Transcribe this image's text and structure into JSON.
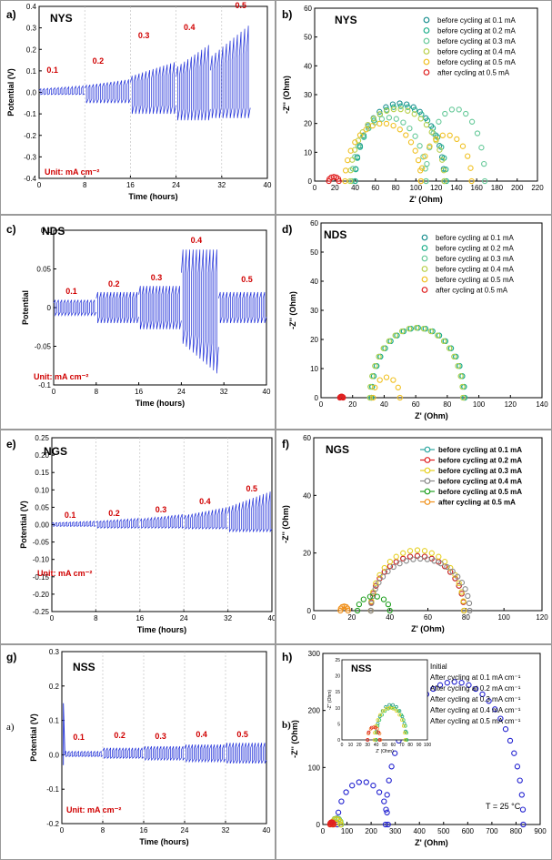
{
  "chart_data": [
    {
      "id": "a",
      "type": "line",
      "panel_label": "a)",
      "material": "NYS",
      "xlabel": "Time (hours)",
      "ylabel": "Potential (V)",
      "xlim": [
        0,
        40
      ],
      "ylim": [
        -0.4,
        0.4
      ],
      "xticks": [
        0,
        8,
        16,
        24,
        32,
        40
      ],
      "yticks": [
        -0.4,
        -0.3,
        -0.2,
        -0.1,
        0.0,
        0.1,
        0.2,
        0.3,
        0.4
      ],
      "unit_note": "Unit: mA cm⁻²",
      "grid": "vertical dashed at 8-hour intervals",
      "current_steps": [
        {
          "label": "0.1",
          "start": 0,
          "end": 8,
          "peak": 0.03,
          "trough": -0.01
        },
        {
          "label": "0.2",
          "start": 8,
          "end": 16,
          "peak": 0.06,
          "trough": -0.05
        },
        {
          "label": "0.3",
          "start": 16,
          "end": 24,
          "peak": 0.14,
          "trough": -0.1
        },
        {
          "label": "0.4",
          "start": 24,
          "end": 30,
          "peak": 0.22,
          "trough": -0.13
        },
        {
          "label": "0.5",
          "start": 30,
          "end": 37,
          "peak": 0.31,
          "trough": -0.12
        }
      ],
      "label_positions": [
        {
          "label": "0.1",
          "x": 2.5,
          "y": 0.1
        },
        {
          "label": "0.2",
          "x": 10.5,
          "y": 0.14
        },
        {
          "label": "0.3",
          "x": 18.5,
          "y": 0.26
        },
        {
          "label": "0.4",
          "x": 26.5,
          "y": 0.3
        },
        {
          "label": "0.5",
          "x": 35.5,
          "y": 0.4
        }
      ]
    },
    {
      "id": "b",
      "type": "scatter",
      "panel_label": "b)",
      "material": "NYS",
      "xlabel": "Z' (Ohm)",
      "ylabel": "-Z'' (Ohm)",
      "xlim": [
        0,
        220
      ],
      "ylim": [
        0,
        60
      ],
      "xticks": [
        0,
        20,
        40,
        60,
        80,
        100,
        120,
        140,
        160,
        180,
        200,
        220
      ],
      "yticks": [
        0,
        10,
        20,
        30,
        40,
        50,
        60
      ],
      "legend": "top-right",
      "series": [
        {
          "name": "before cycling at 0.1 mA",
          "color": "#1a8f8f",
          "arcs": [
            {
              "x1": 40,
              "x2": 128,
              "h": 27
            }
          ]
        },
        {
          "name": "before cycling at 0.2 mA",
          "color": "#20b08c",
          "arcs": [
            {
              "x1": 40,
              "x2": 130,
              "h": 26
            }
          ]
        },
        {
          "name": "before cycling at 0.3 mA",
          "color": "#66c999",
          "arcs": [
            {
              "x1": 37,
              "x2": 110,
              "h": 22
            },
            {
              "x1": 110,
              "x2": 168,
              "h": 25
            }
          ]
        },
        {
          "name": "before cycling at 0.4 mA",
          "color": "#b8d04a",
          "arcs": [
            {
              "x1": 35,
              "x2": 128,
              "h": 25
            }
          ]
        },
        {
          "name": "before cycling at 0.5 mA",
          "color": "#f0c020",
          "arcs": [
            {
              "x1": 30,
              "x2": 105,
              "h": 20
            },
            {
              "x1": 105,
              "x2": 155,
              "h": 16
            }
          ]
        },
        {
          "name": "after cycling at 0.5 mA",
          "color": "#e02020",
          "arcs": [
            {
              "x1": 14,
              "x2": 24,
              "h": 1.5
            }
          ]
        }
      ]
    },
    {
      "id": "c",
      "type": "line",
      "panel_label": "c)",
      "material": "NDS",
      "xlabel": "Time (hours)",
      "ylabel": "Potential",
      "xlim": [
        0,
        40
      ],
      "ylim": [
        -0.1,
        0.1
      ],
      "xticks": [
        0,
        8,
        16,
        24,
        32,
        40
      ],
      "yticks": [
        -0.1,
        -0.05,
        0,
        0.05,
        0.1
      ],
      "unit_note": "Unit: mA cm⁻²",
      "current_steps": [
        {
          "label": "0.1",
          "start": 0,
          "end": 8,
          "peak": 0.01,
          "trough": -0.01
        },
        {
          "label": "0.2",
          "start": 8,
          "end": 16,
          "peak": 0.02,
          "trough": -0.02
        },
        {
          "label": "0.3",
          "start": 16,
          "end": 24,
          "peak": 0.028,
          "trough": -0.028
        },
        {
          "label": "0.4",
          "start": 24,
          "end": 31,
          "peak": 0.075,
          "trough": -0.085
        },
        {
          "label": "0.5",
          "start": 31,
          "end": 40,
          "peak": 0.02,
          "trough": -0.02
        }
      ],
      "label_positions": [
        {
          "label": "0.1",
          "x": 3.5,
          "y": 0.02
        },
        {
          "label": "0.2",
          "x": 11.5,
          "y": 0.03
        },
        {
          "label": "0.3",
          "x": 19.5,
          "y": 0.038
        },
        {
          "label": "0.4",
          "x": 27,
          "y": 0.086
        },
        {
          "label": "0.5",
          "x": 36.5,
          "y": 0.035
        }
      ]
    },
    {
      "id": "d",
      "type": "scatter",
      "panel_label": "d)",
      "material": "NDS",
      "xlabel": "Z' (Ohm)",
      "ylabel": "-Z'' (Ohm)",
      "xlim": [
        0,
        140
      ],
      "ylim": [
        0,
        60
      ],
      "xticks": [
        0,
        20,
        40,
        60,
        80,
        100,
        120,
        140
      ],
      "yticks": [
        0,
        10,
        20,
        30,
        40,
        50,
        60
      ],
      "legend": "top-right",
      "series": [
        {
          "name": "before cycling at 0.1 mA",
          "color": "#1a8f8f",
          "arcs": [
            {
              "x1": 32,
              "x2": 91,
              "h": 24
            }
          ]
        },
        {
          "name": "before cycling at 0.2 mA",
          "color": "#20b08c",
          "arcs": [
            {
              "x1": 32,
              "x2": 91,
              "h": 24
            }
          ]
        },
        {
          "name": "before cycling at 0.3 mA",
          "color": "#66c999",
          "arcs": [
            {
              "x1": 31,
              "x2": 90,
              "h": 24
            }
          ]
        },
        {
          "name": "before cycling at 0.4 mA",
          "color": "#b8d04a",
          "arcs": [
            {
              "x1": 31,
              "x2": 90,
              "h": 24
            }
          ]
        },
        {
          "name": "before cycling at 0.5 mA",
          "color": "#f0c020",
          "arcs": [
            {
              "x1": 33,
              "x2": 50,
              "h": 7
            }
          ]
        },
        {
          "name": "after cycling at 0.5 mA",
          "color": "#e02020",
          "arcs": [
            {
              "x1": 12,
              "x2": 14,
              "h": 0.4
            }
          ]
        }
      ]
    },
    {
      "id": "e",
      "type": "line",
      "panel_label": "e)",
      "material": "NGS",
      "xlabel": "Time (hours)",
      "ylabel": "Potential (V)",
      "xlim": [
        0,
        40
      ],
      "ylim": [
        -0.25,
        0.25
      ],
      "xticks": [
        0,
        8,
        16,
        24,
        32,
        40
      ],
      "yticks": [
        -0.25,
        -0.2,
        -0.15,
        -0.1,
        -0.05,
        0.0,
        0.05,
        0.1,
        0.15,
        0.2,
        0.25
      ],
      "unit_note": "Unit: mA cm⁻²",
      "grid": "vertical dashed at 8-hour intervals",
      "current_steps": [
        {
          "label": "0.1",
          "start": 0,
          "end": 8,
          "peak": 0.01,
          "trough": -0.005
        },
        {
          "label": "0.2",
          "start": 8,
          "end": 16,
          "peak": 0.018,
          "trough": -0.01
        },
        {
          "label": "0.3",
          "start": 16,
          "end": 24,
          "peak": 0.03,
          "trough": -0.01
        },
        {
          "label": "0.4",
          "start": 24,
          "end": 32,
          "peak": 0.05,
          "trough": -0.012
        },
        {
          "label": "0.5",
          "start": 32,
          "end": 40,
          "peak": 0.095,
          "trough": -0.02
        }
      ],
      "label_positions": [
        {
          "label": "0.1",
          "x": 3.5,
          "y": 0.025
        },
        {
          "label": "0.2",
          "x": 11.5,
          "y": 0.03
        },
        {
          "label": "0.3",
          "x": 20,
          "y": 0.04
        },
        {
          "label": "0.4",
          "x": 28,
          "y": 0.065
        },
        {
          "label": "0.5",
          "x": 36.5,
          "y": 0.1
        }
      ]
    },
    {
      "id": "f",
      "type": "scatter",
      "panel_label": "f)",
      "material": "NGS",
      "xlabel": "Z' (Ohm)",
      "ylabel": "-Z'' (Ohm)",
      "xlim": [
        0,
        120
      ],
      "ylim": [
        0,
        60
      ],
      "xticks": [
        0,
        20,
        40,
        60,
        80,
        100,
        120
      ],
      "yticks": [
        0,
        20,
        40,
        60
      ],
      "legend": "top-right",
      "series": [
        {
          "name": "before cycling at 0.1 mA",
          "color": "#2aa6a0",
          "arcs": [
            {
              "x1": 30,
              "x2": 79,
              "h": 19
            }
          ]
        },
        {
          "name": "before cycling at 0.2 mA",
          "color": "#e02020",
          "arcs": [
            {
              "x1": 30,
              "x2": 79,
              "h": 19
            }
          ]
        },
        {
          "name": "before cycling at 0.3 mA",
          "color": "#e6d020",
          "arcs": [
            {
              "x1": 30,
              "x2": 79,
              "h": 21
            }
          ]
        },
        {
          "name": "before cycling at 0.4 mA",
          "color": "#888888",
          "arcs": [
            {
              "x1": 30,
              "x2": 82,
              "h": 18
            }
          ]
        },
        {
          "name": "before cycling at 0.5 mA",
          "color": "#20a020",
          "arcs": [
            {
              "x1": 23,
              "x2": 40,
              "h": 5
            }
          ]
        },
        {
          "name": "after cycling at 0.5 mA",
          "color": "#f0901a",
          "arcs": [
            {
              "x1": 14,
              "x2": 18,
              "h": 1.5
            }
          ]
        }
      ]
    },
    {
      "id": "g",
      "type": "line",
      "panel_label": "g)",
      "material": "NSS",
      "xlabel": "Time (hours)",
      "ylabel": "Potential (V)",
      "xlim": [
        0,
        40
      ],
      "ylim": [
        -0.2,
        0.3
      ],
      "xticks": [
        0,
        8,
        16,
        24,
        32,
        40
      ],
      "yticks": [
        -0.2,
        -0.1,
        0.0,
        0.1,
        0.2,
        0.3
      ],
      "unit_note": "Unit: mA cm⁻²",
      "extra_label": "a)",
      "grid": "vertical dashed at 8-hour intervals",
      "current_steps": [
        {
          "label": "0.1",
          "start": 0.5,
          "end": 8,
          "peak": 0.01,
          "trough": -0.005
        },
        {
          "label": "0.2",
          "start": 8,
          "end": 16,
          "peak": 0.02,
          "trough": -0.01
        },
        {
          "label": "0.3",
          "start": 16,
          "end": 24,
          "peak": 0.025,
          "trough": -0.015
        },
        {
          "label": "0.4",
          "start": 24,
          "end": 32,
          "peak": 0.03,
          "trough": -0.02
        },
        {
          "label": "0.5",
          "start": 32,
          "end": 40,
          "peak": 0.035,
          "trough": -0.025
        }
      ],
      "initial_spike": {
        "x": 0.3,
        "peak": 0.15,
        "trough": -0.03
      },
      "label_positions": [
        {
          "label": "0.1",
          "x": 3.5,
          "y": 0.05
        },
        {
          "label": "0.2",
          "x": 11.5,
          "y": 0.055
        },
        {
          "label": "0.3",
          "x": 19.5,
          "y": 0.052
        },
        {
          "label": "0.4",
          "x": 27.5,
          "y": 0.057
        },
        {
          "label": "0.5",
          "x": 35.5,
          "y": 0.057
        }
      ]
    },
    {
      "id": "h",
      "type": "scatter",
      "panel_label": "h)",
      "material": "NSS",
      "xlabel": "Z' (Ohm)",
      "ylabel": "-Z'' (Ohm)",
      "xlim": [
        0,
        900
      ],
      "ylim": [
        0,
        300
      ],
      "xticks": [
        0,
        100,
        200,
        300,
        400,
        500,
        600,
        700,
        800,
        900
      ],
      "yticks": [
        0,
        100,
        200,
        300
      ],
      "annotation": "T = 25 °C",
      "extra_label": "b)",
      "legend": "top-right",
      "series": [
        {
          "name": "Initial",
          "color": "#2020d0",
          "arcs": [
            {
              "x1": 60,
              "x2": 270,
              "h": 75
            },
            {
              "x1": 260,
              "x2": 830,
              "h": 250
            }
          ]
        },
        {
          "name": "After cycling at 0.1 mA cm⁻¹",
          "color": "#1a9a7a",
          "arcs": [
            {
              "x1": 40,
              "x2": 75,
              "h": 11
            }
          ]
        },
        {
          "name": "After cycling at 0.2 mA cm⁻¹",
          "color": "#30c060",
          "arcs": [
            {
              "x1": 40,
              "x2": 76,
              "h": 10
            }
          ]
        },
        {
          "name": "After cycling at 0.3 mA cm⁻¹",
          "color": "#e8d020",
          "arcs": [
            {
              "x1": 38,
              "x2": 74,
              "h": 10
            }
          ]
        },
        {
          "name": "After cycling at 0.4 mA cm⁻¹",
          "color": "#f08030",
          "arcs": [
            {
              "x1": 30,
              "x2": 45,
              "h": 4
            }
          ]
        },
        {
          "name": "After cycling at 0.5 mA cm⁻¹",
          "color": "#e02020",
          "arcs": [
            {
              "x1": 30,
              "x2": 44,
              "h": 4
            }
          ]
        }
      ],
      "inset": {
        "material": "NSS",
        "xlabel": "Z' (Ohm)",
        "ylabel": "-Z'' (Ohm)",
        "xlim": [
          0,
          100
        ],
        "ylim": [
          0,
          25
        ],
        "xticks": [
          0,
          10,
          20,
          30,
          40,
          50,
          60,
          70,
          80,
          90,
          100
        ],
        "yticks": [
          0,
          5,
          10,
          15,
          20,
          25
        ]
      }
    }
  ]
}
